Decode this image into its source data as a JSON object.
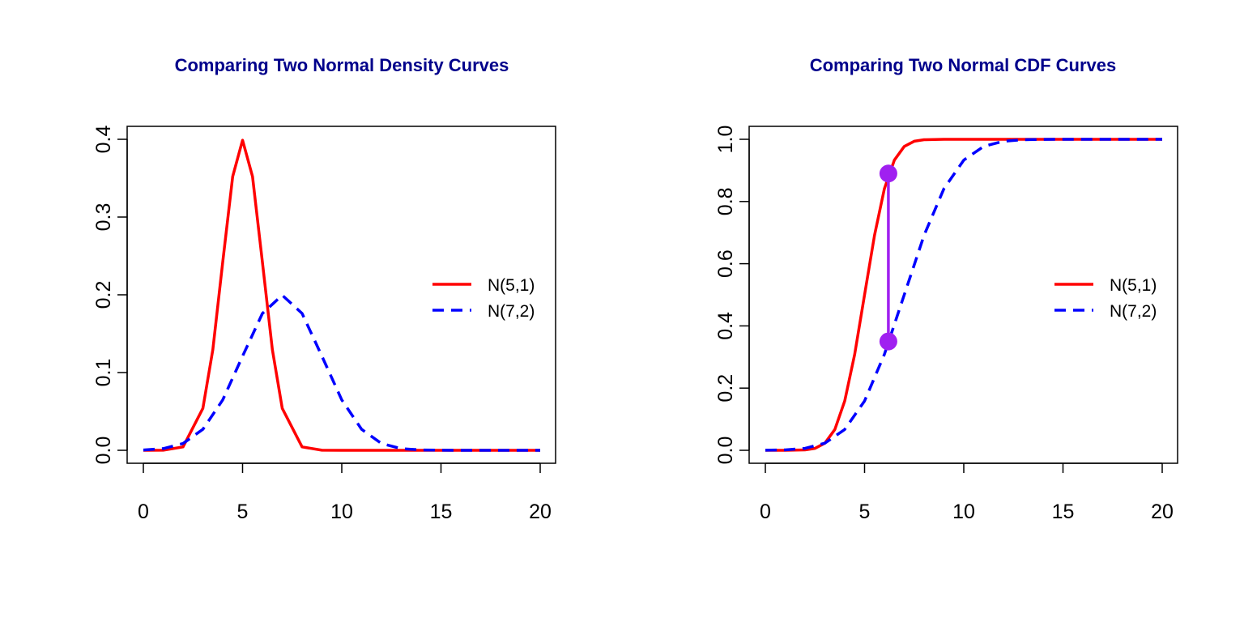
{
  "colors": {
    "title": "#00008B",
    "series1": "#FF0000",
    "series2": "#0000FF",
    "marker": "#A020F0",
    "axis": "#000000"
  },
  "chart_data": [
    {
      "type": "line",
      "title": "Comparing Two Normal Density Curves",
      "xlabel": "",
      "ylabel": "",
      "xlim": [
        0,
        20
      ],
      "ylim": [
        0,
        0.4
      ],
      "x_ticks": [
        "0",
        "5",
        "10",
        "15",
        "20"
      ],
      "y_ticks": [
        "0.0",
        "0.1",
        "0.2",
        "0.3",
        "0.4"
      ],
      "grid": false,
      "legend_position": "right",
      "series": [
        {
          "name": "N(5,1)",
          "style": "solid",
          "x": [
            0,
            1,
            2,
            3,
            3.5,
            4,
            4.5,
            5,
            5.5,
            6,
            6.5,
            7,
            8,
            9,
            10,
            12,
            15,
            20
          ],
          "values": [
            0.0,
            0.0001,
            0.0044,
            0.054,
            0.1295,
            0.242,
            0.3521,
            0.3989,
            0.3521,
            0.242,
            0.1295,
            0.054,
            0.0044,
            0.0001,
            0.0,
            0.0,
            0.0,
            0.0
          ]
        },
        {
          "name": "N(7,2)",
          "style": "dashed",
          "x": [
            0,
            1,
            2,
            3,
            4,
            5,
            6,
            7,
            8,
            9,
            10,
            11,
            12,
            13,
            14,
            15,
            16,
            17,
            18,
            19,
            20
          ],
          "values": [
            0.0004,
            0.0022,
            0.0088,
            0.027,
            0.0648,
            0.121,
            0.176,
            0.1995,
            0.176,
            0.121,
            0.0648,
            0.027,
            0.0088,
            0.0022,
            0.0004,
            0.0001,
            0.0,
            0.0,
            0.0,
            0.0,
            0.0
          ]
        }
      ]
    },
    {
      "type": "line",
      "title": "Comparing Two Normal CDF Curves",
      "xlabel": "",
      "ylabel": "",
      "xlim": [
        0,
        20
      ],
      "ylim": [
        0,
        1.0
      ],
      "x_ticks": [
        "0",
        "5",
        "10",
        "15",
        "20"
      ],
      "y_ticks": [
        "0.0",
        "0.2",
        "0.4",
        "0.6",
        "0.8",
        "1.0"
      ],
      "grid": false,
      "legend_position": "right",
      "series": [
        {
          "name": "N(5,1)",
          "style": "solid",
          "x": [
            0,
            1,
            2,
            2.5,
            3,
            3.5,
            4,
            4.5,
            5,
            5.5,
            6,
            6.5,
            7,
            7.5,
            8,
            9,
            10,
            12,
            15,
            20
          ],
          "values": [
            0.0,
            0.0,
            0.0013,
            0.0062,
            0.0228,
            0.0668,
            0.1587,
            0.3085,
            0.5,
            0.6915,
            0.8413,
            0.9332,
            0.9772,
            0.9938,
            0.9987,
            1.0,
            1.0,
            1.0,
            1.0,
            1.0
          ]
        },
        {
          "name": "N(7,2)",
          "style": "dashed",
          "x": [
            0,
            1,
            2,
            3,
            4,
            5,
            6,
            7,
            8,
            9,
            10,
            11,
            12,
            13,
            14,
            15,
            16,
            18,
            20
          ],
          "values": [
            0.0002,
            0.0013,
            0.0062,
            0.0228,
            0.0668,
            0.1587,
            0.3085,
            0.5,
            0.6915,
            0.8413,
            0.9332,
            0.9772,
            0.9938,
            0.9987,
            0.9998,
            1.0,
            1.0,
            1.0,
            1.0
          ]
        }
      ],
      "annotation": {
        "type": "vertical-segment",
        "x": 6.2,
        "y_from": 0.35,
        "y_to": 0.89
      }
    }
  ]
}
